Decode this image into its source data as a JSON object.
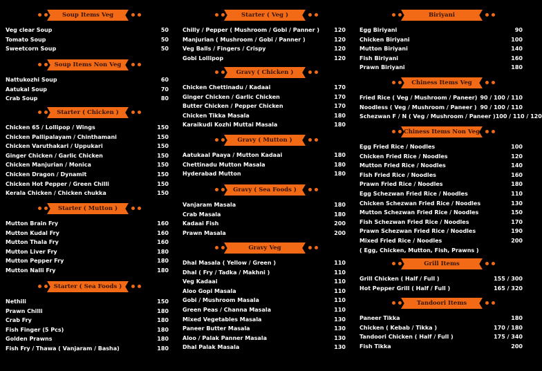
{
  "colors": {
    "accent": "#f26a16",
    "background": "#000000",
    "text": "#ffffff"
  },
  "columns": [
    [
      {
        "title": "Soup Items Veg",
        "items": [
          {
            "name": "Veg clear Soup",
            "price": "50"
          },
          {
            "name": "Tomato Soup",
            "price": "50"
          },
          {
            "name": "Sweetcorn Soup",
            "price": "50"
          }
        ]
      },
      {
        "title": "Soup Items Non Veg",
        "items": [
          {
            "name": "Nattukozhi Soup",
            "price": "60"
          },
          {
            "name": "Aatukal Soup",
            "price": "70"
          },
          {
            "name": "Crab Soup",
            "price": "80"
          }
        ]
      },
      {
        "title": "Starter ( Chicken )",
        "items": [
          {
            "name": "Chicken 65 / Lollipop / Wings",
            "price": "150"
          },
          {
            "name": "Chicken Pallipalayam / Chinthamani",
            "price": "150"
          },
          {
            "name": "Chicken Varuthakari / Uppukari",
            "price": "150"
          },
          {
            "name": "Ginger Chicken / Garlic Chicken",
            "price": "150"
          },
          {
            "name": "Chicken Manjurian / Monica",
            "price": "150"
          },
          {
            "name": "Chicken Dragon / Dynamit",
            "price": "150"
          },
          {
            "name": "Chicken Hot Pepper / Green Chilli",
            "price": "150"
          },
          {
            "name": "Kerala Chicken / Chicken chukka",
            "price": "150"
          }
        ]
      },
      {
        "title": "Starter ( Mutton )",
        "items": [
          {
            "name": "Mutton Brain Fry",
            "price": "160"
          },
          {
            "name": "Mutton Kudal Fry",
            "price": "160"
          },
          {
            "name": "Mutton Thala Fry",
            "price": "160"
          },
          {
            "name": "Mutton Liver Fry",
            "price": "180"
          },
          {
            "name": "Mutton Pepper Fry",
            "price": "180"
          },
          {
            "name": "Mutton Nalli Fry",
            "price": "180"
          }
        ]
      },
      {
        "title": "Starter ( Sea Foods )",
        "items": [
          {
            "name": "Nethili",
            "price": "150"
          },
          {
            "name": "Prawn Chilli",
            "price": "180"
          },
          {
            "name": "Crab Fry",
            "price": "180"
          },
          {
            "name": "Fish Finger (5 Pcs)",
            "price": "180"
          },
          {
            "name": "Golden Prawns",
            "price": "180"
          },
          {
            "name": "Fish Fry / Thawa ( Vanjaram / Basha)",
            "price": "180"
          }
        ]
      }
    ],
    [
      {
        "title": "Starter ( Veg )",
        "items": [
          {
            "name": "Chilly / Pepper ( Mushroom / Gobi / Panner )",
            "price": "120"
          },
          {
            "name": "Manjurian ( Mushroom / Gobi / Panner )",
            "price": "120"
          },
          {
            "name": "Veg Balls / Fingers / Crispy",
            "price": "120"
          },
          {
            "name": "Gobi Lollipop",
            "price": "120"
          }
        ]
      },
      {
        "title": "Gravy ( Chicken )",
        "items": [
          {
            "name": "Chicken Chettinadu / Kadaai",
            "price": "170"
          },
          {
            "name": "Ginger Chicken / Garlic Chicken",
            "price": "170"
          },
          {
            "name": "Butter Chicken / Pepper Chicken",
            "price": "170"
          },
          {
            "name": "Chicken Tikka Masala",
            "price": "180"
          },
          {
            "name": "Karaikudi Kozhi Muttai Masala",
            "price": "180"
          }
        ]
      },
      {
        "title": "Gravy ( Mutton )",
        "items": [
          {
            "name": "Aatukaal Paaya / Mutton Kadaai",
            "price": "180"
          },
          {
            "name": "Chettinadu Mutton Masala",
            "price": "180"
          },
          {
            "name": "Hyderabad Mutton",
            "price": "180"
          }
        ]
      },
      {
        "title": "Gravy ( Sea Foods )",
        "items": [
          {
            "name": "Vanjaram Masala",
            "price": "180"
          },
          {
            "name": "Crab Masala",
            "price": "180"
          },
          {
            "name": "Kadaai Fish",
            "price": "200"
          },
          {
            "name": "Prawn Masala",
            "price": "200"
          }
        ]
      },
      {
        "title": "Gravy Veg",
        "items": [
          {
            "name": "Dhal Masala ( Yellow / Green )",
            "price": "110"
          },
          {
            "name": "Dhal ( Fry /  Tadka / Makhni )",
            "price": "110"
          },
          {
            "name": "Veg Kadaai",
            "price": "110"
          },
          {
            "name": "Aloo Gopi Masala",
            "price": "110"
          },
          {
            "name": "Gobi / Mushroom Masala",
            "price": "110"
          },
          {
            "name": "Green Peas / Channa Masala",
            "price": "110"
          },
          {
            "name": "Mixed Vegetables Masala",
            "price": "130"
          },
          {
            "name": "Paneer Butter Masala",
            "price": "130"
          },
          {
            "name": "Aloo / Palak Panner Masala",
            "price": "130"
          },
          {
            "name": "Dhal Palak Masala",
            "price": "130"
          }
        ]
      }
    ],
    [
      {
        "title": "Biriyani",
        "items": [
          {
            "name": "Egg  Biriyani",
            "price": "90"
          },
          {
            "name": "Chicken  Biriyani",
            "price": "100"
          },
          {
            "name": "Mutton Biriyani",
            "price": "140"
          },
          {
            "name": "Fish Biriyani",
            "price": "160"
          },
          {
            "name": "Prawn Biriyani",
            "price": "180"
          }
        ]
      },
      {
        "title": "Chiness Items Veg",
        "items": [
          {
            "name": "Fried Rice ( Veg / Mushroom / Paneer)",
            "price": "90 / 100 / 110"
          },
          {
            "name": "Noodless ( Veg / Mushroom / Paneer  )",
            "price": "90 / 100 / 110"
          },
          {
            "name": "Schezwan F / N ( Veg / Mushroom / Paneer  )",
            "price": "100 / 110 / 120"
          }
        ]
      },
      {
        "title": "Chiness Items Non Veg",
        "items": [
          {
            "name": "Egg Fried Rice / Noodles",
            "price": "100"
          },
          {
            "name": "Chicken Fried Rice / Noodles",
            "price": "120"
          },
          {
            "name": "Mutton Fried Rice / Noodles",
            "price": "140"
          },
          {
            "name": "Fish Fried Rice / Noodles",
            "price": "160"
          },
          {
            "name": "Prawn Fried Rice / Noodles",
            "price": "180"
          },
          {
            "name": "Egg Schezwan Fried Rice / Noodles",
            "price": "110"
          },
          {
            "name": "Chicken Schezwan Fried Rice / Noodles",
            "price": "130"
          },
          {
            "name": "Mutton Schezwan Fried Rice / Noodles",
            "price": "150"
          },
          {
            "name": "Fish Schezwan Fried Rice / Noodles",
            "price": "170"
          },
          {
            "name": "Prawn Schezwan Fried Rice / Noodles",
            "price": "190"
          },
          {
            "name": "Mixed Fried Rice / Noodles",
            "sub": "( Egg, Chicken, Mutton, Fish, Prawns )",
            "price": "200"
          }
        ]
      },
      {
        "title": "Grill Items",
        "items": [
          {
            "name": "Grill Chicken ( Half / Full )",
            "price": "155 / 300"
          },
          {
            "name": "Hot Pepper Grill ( Half / Full )",
            "price": "165 / 320"
          }
        ]
      },
      {
        "title": "Tandoori Items",
        "items": [
          {
            "name": "Paneer Tikka",
            "price": "180"
          },
          {
            "name": "Chicken ( Kebab / Tikka )",
            "price": "170 / 180"
          },
          {
            "name": "Tandoori Chicken ( Half / Full )",
            "price": "175 / 340"
          },
          {
            "name": "Fish Tikka",
            "price": "200"
          }
        ]
      }
    ]
  ]
}
